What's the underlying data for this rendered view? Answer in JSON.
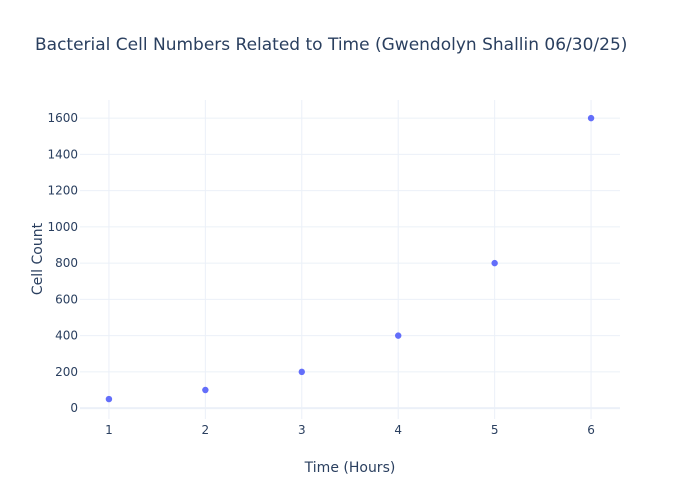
{
  "chart_data": {
    "type": "scatter",
    "title": "Bacterial Cell Numbers Related to Time (Gwendolyn Shallin 06/30/25)",
    "xlabel": "Time (Hours)",
    "ylabel": "Cell Count",
    "x": [
      1,
      2,
      3,
      4,
      5,
      6
    ],
    "y": [
      50,
      100,
      200,
      400,
      800,
      1600
    ],
    "xlim": [
      0.7,
      6.3
    ],
    "ylim": [
      -60,
      1700
    ],
    "x_ticks": [
      1,
      2,
      3,
      4,
      5,
      6
    ],
    "y_ticks": [
      0,
      200,
      400,
      600,
      800,
      1000,
      1200,
      1400,
      1600
    ],
    "grid": true,
    "legend": "none",
    "marker_color": "#636efa",
    "grid_color": "#ebf0f8",
    "text_color": "#2a3f5f"
  }
}
